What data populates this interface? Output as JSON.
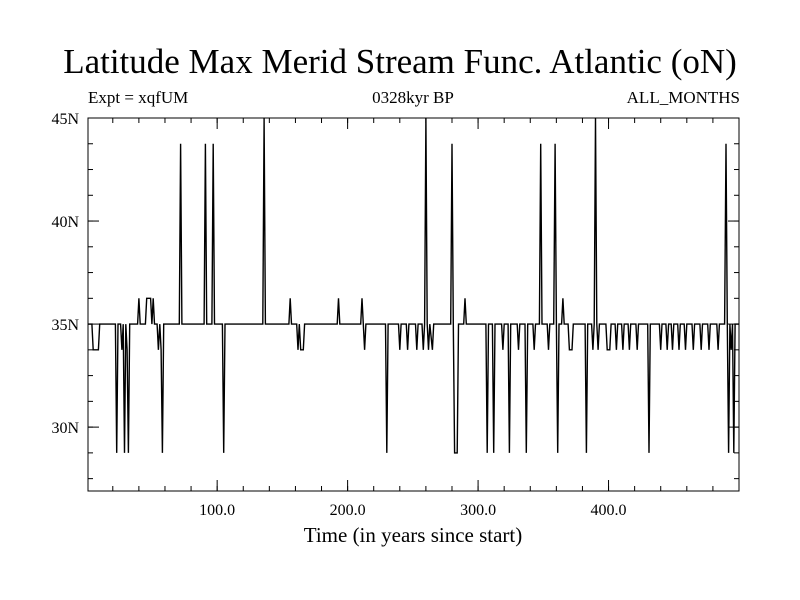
{
  "chart_data": {
    "type": "line",
    "title": "Latitude Max Merid Stream Func. Atlantic (oN)",
    "subtitle_left": "Expt = xqfUM",
    "subtitle_center": "0328kyr BP",
    "subtitle_right": "ALL_MONTHS",
    "xlabel": "Time (in years since start)",
    "ylabel": "",
    "xlim": [
      1,
      500
    ],
    "ylim": [
      26.9,
      45
    ],
    "x_ticks": [
      {
        "value": 100,
        "label": "100.0"
      },
      {
        "value": 200,
        "label": "200.0"
      },
      {
        "value": 300,
        "label": "300.0"
      },
      {
        "value": 400,
        "label": "400.0"
      }
    ],
    "x_minor_step": 20,
    "y_ticks": [
      {
        "value": 30,
        "label": "30N"
      },
      {
        "value": 35,
        "label": "35N"
      },
      {
        "value": 40,
        "label": "40N"
      },
      {
        "value": 45,
        "label": "45N"
      }
    ],
    "y_minor_step": 1.25,
    "grid": false,
    "line_color": "#000000",
    "series": [
      {
        "points": [
          [
            1,
            35
          ],
          [
            4,
            35
          ],
          [
            5,
            33.75
          ],
          [
            9,
            33.75
          ],
          [
            10,
            35
          ],
          [
            22,
            35
          ],
          [
            23,
            28.75
          ],
          [
            24,
            35
          ],
          [
            26,
            35
          ],
          [
            27,
            33.75
          ],
          [
            28,
            35
          ],
          [
            29,
            28.75
          ],
          [
            30,
            35
          ],
          [
            31,
            33.75
          ],
          [
            32,
            28.75
          ],
          [
            33,
            35
          ],
          [
            39,
            35
          ],
          [
            40,
            36.25
          ],
          [
            41,
            35
          ],
          [
            45,
            35
          ],
          [
            46,
            36.25
          ],
          [
            49,
            36.25
          ],
          [
            50,
            35
          ],
          [
            51,
            36.25
          ],
          [
            52,
            35
          ],
          [
            54,
            35
          ],
          [
            55,
            33.75
          ],
          [
            56,
            35
          ],
          [
            57,
            33.75
          ],
          [
            58,
            28.75
          ],
          [
            59,
            35
          ],
          [
            71,
            35
          ],
          [
            72,
            43.75
          ],
          [
            73,
            35
          ],
          [
            90,
            35
          ],
          [
            91,
            43.75
          ],
          [
            92,
            35
          ],
          [
            96,
            35
          ],
          [
            97,
            43.75
          ],
          [
            98,
            35
          ],
          [
            104,
            35
          ],
          [
            105,
            28.75
          ],
          [
            106,
            35
          ],
          [
            135,
            35
          ],
          [
            136,
            45
          ],
          [
            137,
            35
          ],
          [
            155,
            35
          ],
          [
            156,
            36.25
          ],
          [
            157,
            35
          ],
          [
            161,
            35
          ],
          [
            162,
            33.75
          ],
          [
            163,
            35
          ],
          [
            164,
            33.75
          ],
          [
            166,
            33.75
          ],
          [
            167,
            35
          ],
          [
            192,
            35
          ],
          [
            193,
            36.25
          ],
          [
            194,
            35
          ],
          [
            210,
            35
          ],
          [
            211,
            36.25
          ],
          [
            212,
            35
          ],
          [
            213,
            33.75
          ],
          [
            214,
            35
          ],
          [
            229,
            35
          ],
          [
            230,
            28.75
          ],
          [
            231,
            35
          ],
          [
            239,
            35
          ],
          [
            240,
            33.75
          ],
          [
            241,
            35
          ],
          [
            245,
            35
          ],
          [
            246,
            33.75
          ],
          [
            247,
            35
          ],
          [
            252,
            35
          ],
          [
            253,
            33.75
          ],
          [
            254,
            35
          ],
          [
            257,
            35
          ],
          [
            258,
            33.75
          ],
          [
            259,
            35
          ],
          [
            260,
            45
          ],
          [
            261,
            35
          ],
          [
            262,
            33.75
          ],
          [
            263,
            35
          ],
          [
            265,
            33.75
          ],
          [
            266,
            35
          ],
          [
            279,
            35
          ],
          [
            280,
            43.75
          ],
          [
            281,
            35
          ],
          [
            282,
            28.75
          ],
          [
            284,
            28.75
          ],
          [
            285,
            35
          ],
          [
            289,
            35
          ],
          [
            290,
            36.25
          ],
          [
            291,
            35
          ],
          [
            306,
            35
          ],
          [
            307,
            28.75
          ],
          [
            308,
            35
          ],
          [
            311,
            35
          ],
          [
            312,
            28.75
          ],
          [
            313,
            35
          ],
          [
            318,
            35
          ],
          [
            319,
            33.75
          ],
          [
            320,
            35
          ],
          [
            323,
            35
          ],
          [
            324,
            28.75
          ],
          [
            325,
            35
          ],
          [
            330,
            35
          ],
          [
            331,
            33.75
          ],
          [
            332,
            35
          ],
          [
            336,
            35
          ],
          [
            337,
            28.75
          ],
          [
            338,
            35
          ],
          [
            342,
            35
          ],
          [
            343,
            33.75
          ],
          [
            344,
            35
          ],
          [
            347,
            35
          ],
          [
            348,
            43.75
          ],
          [
            349,
            35
          ],
          [
            353,
            35
          ],
          [
            354,
            33.75
          ],
          [
            355,
            35
          ],
          [
            358,
            35
          ],
          [
            359,
            43.75
          ],
          [
            360,
            35
          ],
          [
            361,
            28.75
          ],
          [
            362,
            35
          ],
          [
            364,
            35
          ],
          [
            365,
            36.25
          ],
          [
            366,
            35
          ],
          [
            369,
            35
          ],
          [
            370,
            33.75
          ],
          [
            372,
            33.75
          ],
          [
            373,
            35
          ],
          [
            382,
            35
          ],
          [
            383,
            28.75
          ],
          [
            384,
            35
          ],
          [
            387,
            35
          ],
          [
            388,
            33.75
          ],
          [
            389,
            35
          ],
          [
            390,
            45
          ],
          [
            391,
            35
          ],
          [
            392,
            33.75
          ],
          [
            393,
            35
          ],
          [
            398,
            35
          ],
          [
            399,
            33.75
          ],
          [
            401,
            33.75
          ],
          [
            402,
            35
          ],
          [
            405,
            35
          ],
          [
            406,
            33.75
          ],
          [
            407,
            35
          ],
          [
            410,
            35
          ],
          [
            411,
            33.75
          ],
          [
            412,
            35
          ],
          [
            415,
            35
          ],
          [
            416,
            33.75
          ],
          [
            417,
            35
          ],
          [
            421,
            35
          ],
          [
            422,
            33.75
          ],
          [
            423,
            35
          ],
          [
            430,
            35
          ],
          [
            431,
            28.75
          ],
          [
            432,
            35
          ],
          [
            439,
            35
          ],
          [
            440,
            33.75
          ],
          [
            441,
            35
          ],
          [
            444,
            35
          ],
          [
            445,
            33.75
          ],
          [
            446,
            35
          ],
          [
            448,
            35
          ],
          [
            449,
            33.75
          ],
          [
            450,
            35
          ],
          [
            453,
            35
          ],
          [
            454,
            33.75
          ],
          [
            455,
            35
          ],
          [
            458,
            35
          ],
          [
            459,
            33.75
          ],
          [
            460,
            35
          ],
          [
            464,
            35
          ],
          [
            465,
            33.75
          ],
          [
            466,
            35
          ],
          [
            470,
            35
          ],
          [
            471,
            33.75
          ],
          [
            472,
            35
          ],
          [
            476,
            35
          ],
          [
            477,
            33.75
          ],
          [
            478,
            35
          ],
          [
            483,
            35
          ],
          [
            484,
            33.75
          ],
          [
            485,
            35
          ],
          [
            489,
            35
          ],
          [
            490,
            43.75
          ],
          [
            491,
            35
          ],
          [
            492,
            28.75
          ],
          [
            493,
            35
          ],
          [
            494,
            33.75
          ],
          [
            495,
            35
          ],
          [
            496,
            28.75
          ],
          [
            497,
            35
          ],
          [
            500,
            35
          ]
        ]
      }
    ]
  }
}
